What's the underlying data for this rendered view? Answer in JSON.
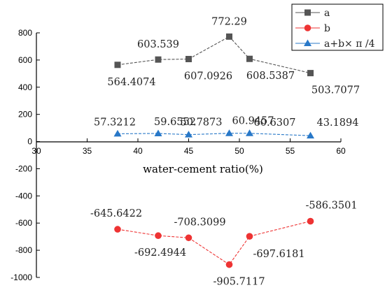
{
  "chart_data": {
    "type": "line",
    "title": "",
    "xlabel": "water-cement ratio(%)",
    "ylabel": "",
    "xlim": [
      30,
      60
    ],
    "ylim": [
      -1000,
      800
    ],
    "x_ticks": [
      30,
      35,
      40,
      45,
      50,
      55,
      60
    ],
    "y_ticks": [
      800,
      600,
      400,
      200,
      0,
      -200,
      -400,
      -600,
      -800,
      -1000
    ],
    "grid": false,
    "legend_position": "top-right",
    "series": [
      {
        "name": "a",
        "color": "#555555",
        "marker": "square",
        "points": [
          {
            "x": 38,
            "y": 564.4074,
            "label": "564.4074"
          },
          {
            "x": 42,
            "y": 603.539,
            "label": "603.539"
          },
          {
            "x": 45,
            "y": 607.0926,
            "label": "607.0926"
          },
          {
            "x": 49,
            "y": 772.29,
            "label": "772.29"
          },
          {
            "x": 51,
            "y": 608.5387,
            "label": "608.5387"
          },
          {
            "x": 57,
            "y": 503.7077,
            "label": "503.7077"
          }
        ]
      },
      {
        "name": "b",
        "color": "#ee3333",
        "marker": "circle",
        "points": [
          {
            "x": 38,
            "y": -645.6422,
            "label": "-645.6422"
          },
          {
            "x": 42,
            "y": -692.4944,
            "label": "-692.4944"
          },
          {
            "x": 45,
            "y": -708.3099,
            "label": "-708.3099"
          },
          {
            "x": 49,
            "y": -905.7117,
            "label": "-905.7117"
          },
          {
            "x": 51,
            "y": -697.6181,
            "label": "-697.6181"
          },
          {
            "x": 57,
            "y": -586.3501,
            "label": "-586.3501"
          }
        ]
      },
      {
        "name": "a+b× π /4",
        "color": "#2878c8",
        "marker": "triangle",
        "points": [
          {
            "x": 38,
            "y": 57.3212,
            "label": "57.3212"
          },
          {
            "x": 42,
            "y": 59.6552,
            "label": "59.6552"
          },
          {
            "x": 45,
            "y": 50.7873,
            "label": "50.7873"
          },
          {
            "x": 49,
            "y": 60.9457,
            "label": "60.9457"
          },
          {
            "x": 51,
            "y": 60.6307,
            "label": "60.6307"
          },
          {
            "x": 57,
            "y": 43.1894,
            "label": "43.1894"
          }
        ]
      }
    ]
  }
}
